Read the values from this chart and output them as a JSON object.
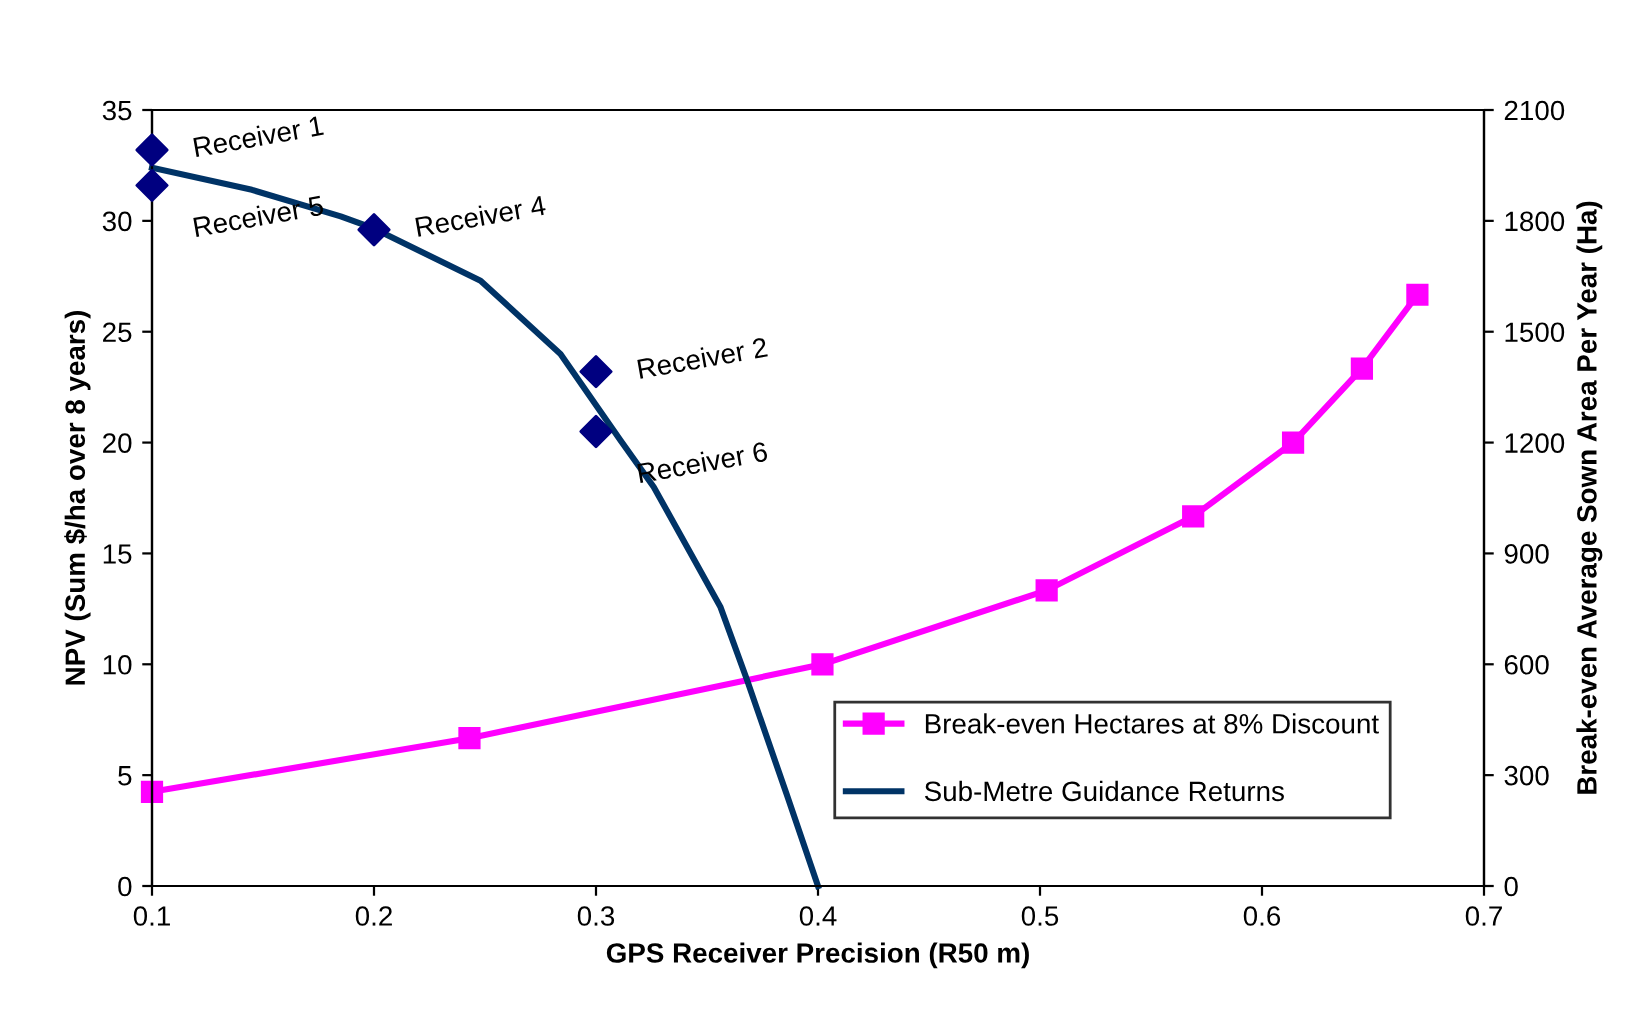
{
  "chart_data": {
    "type": "line",
    "xlabel": "GPS Receiver Precision (R50 m)",
    "ylabel": "NPV (Sum $/ha over 8 years)",
    "y2label": "Break-even Average Sown Area Per Year (Ha)",
    "xlim": [
      0.1,
      0.7
    ],
    "xticks": [
      0.1,
      0.2,
      0.3,
      0.4,
      0.5,
      0.6,
      0.7
    ],
    "ylim": [
      0,
      35
    ],
    "yticks": [
      0,
      5,
      10,
      15,
      20,
      25,
      30,
      35
    ],
    "y2lim": [
      0,
      2100
    ],
    "y2ticks": [
      0,
      300,
      600,
      900,
      1200,
      1500,
      1800,
      2100
    ],
    "grid": false,
    "legend": "bottom right",
    "series": [
      {
        "name": "Break-even Hectares at 8% Discount",
        "axis": "y2",
        "color": "#ff00ff",
        "marker": "square",
        "x": [
          0.1,
          0.243,
          0.402,
          0.503,
          0.569,
          0.614,
          0.645,
          0.67
        ],
        "values": [
          255,
          400,
          600,
          800,
          1000,
          1200,
          1400,
          1600
        ]
      },
      {
        "name": "Sub-Metre Guidance Returns",
        "color": "#003366",
        "marker": "none",
        "x": [
          0.1,
          0.145,
          0.185,
          0.199,
          0.248,
          0.284,
          0.311,
          0.326,
          0.356,
          0.368,
          0.386,
          0.4
        ],
        "values": [
          32.4,
          31.4,
          30.2,
          29.7,
          27.3,
          24.0,
          20.1,
          18.0,
          12.6,
          9.3,
          4.1,
          0
        ]
      },
      {
        "type": "scatter",
        "color": "#000080",
        "marker": "diamond",
        "x": [
          0.1,
          0.1,
          0.2,
          0.3,
          0.3
        ],
        "values": [
          33.2,
          31.6,
          29.6,
          23.2,
          20.5
        ]
      }
    ],
    "annotations": [
      {
        "text": "Receiver 1",
        "x": 0.1,
        "y": 33.2
      },
      {
        "text": "Receiver 5",
        "x": 0.1,
        "y": 31.6
      },
      {
        "text": "Receiver 4",
        "x": 0.2,
        "y": 29.6
      },
      {
        "text": "Receiver 2",
        "x": 0.3,
        "y": 23.2
      },
      {
        "text": "Receiver 6",
        "x": 0.3,
        "y": 20.5
      }
    ]
  }
}
